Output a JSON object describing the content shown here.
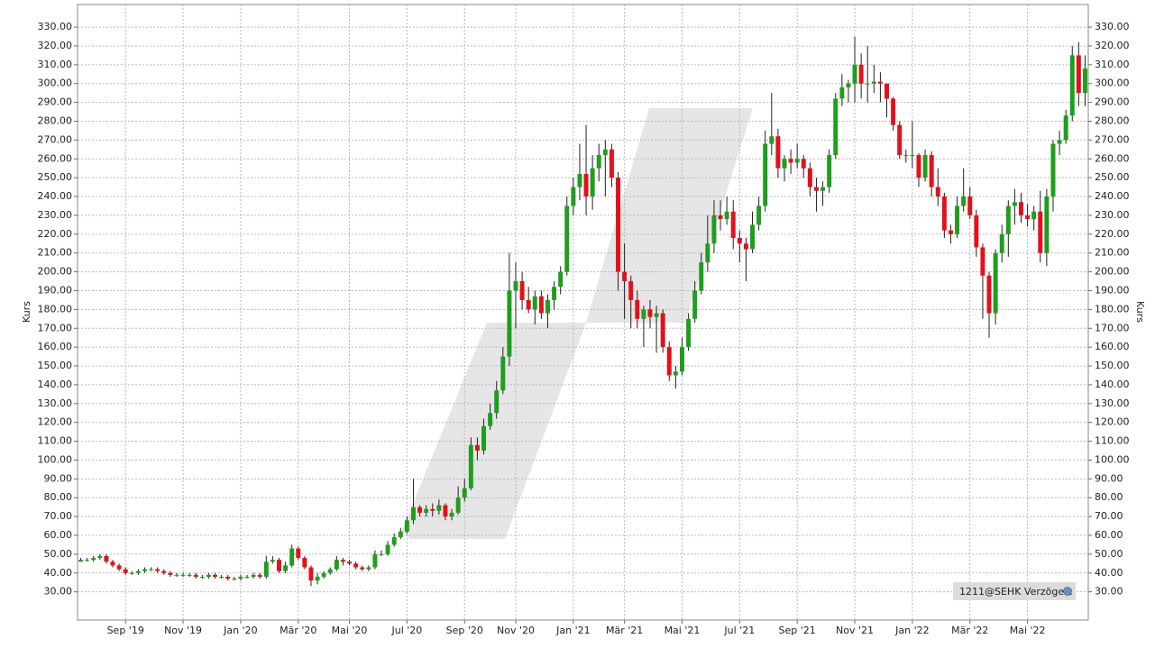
{
  "chart_data": {
    "type": "candlestick",
    "y_label": "Kurs",
    "source_label": "1211@SEHK Verzögert",
    "up_color": "#1e9e1e",
    "down_color": "#e3101c",
    "grid": true,
    "ylim": [
      15,
      342
    ],
    "yticks": [
      {
        "value": 30,
        "label": "30.00"
      },
      {
        "value": 40,
        "label": "40.00"
      },
      {
        "value": 50,
        "label": "50.00"
      },
      {
        "value": 60,
        "label": "60.00"
      },
      {
        "value": 70,
        "label": "70.00"
      },
      {
        "value": 80,
        "label": "80.00"
      },
      {
        "value": 90,
        "label": "90.00"
      },
      {
        "value": 100,
        "label": "100.00"
      },
      {
        "value": 110,
        "label": "110.00"
      },
      {
        "value": 120,
        "label": "120.00"
      },
      {
        "value": 130,
        "label": "130.00"
      },
      {
        "value": 140,
        "label": "140.00"
      },
      {
        "value": 150,
        "label": "150.00"
      },
      {
        "value": 160,
        "label": "160.00"
      },
      {
        "value": 170,
        "label": "170.00"
      },
      {
        "value": 180,
        "label": "180.00"
      },
      {
        "value": 190,
        "label": "190.00"
      },
      {
        "value": 200,
        "label": "200.00"
      },
      {
        "value": 210,
        "label": "210.00"
      },
      {
        "value": 220,
        "label": "220.00"
      },
      {
        "value": 230,
        "label": "230.00"
      },
      {
        "value": 240,
        "label": "240.00"
      },
      {
        "value": 250,
        "label": "250.00"
      },
      {
        "value": 260,
        "label": "260.00"
      },
      {
        "value": 270,
        "label": "270.00"
      },
      {
        "value": 280,
        "label": "280.00"
      },
      {
        "value": 290,
        "label": "290.00"
      },
      {
        "value": 300,
        "label": "300.00"
      },
      {
        "value": 310,
        "label": "310.00"
      },
      {
        "value": 320,
        "label": "320.00"
      },
      {
        "value": 330,
        "label": "330.00"
      }
    ],
    "categories": [
      null,
      null,
      null,
      null,
      null,
      null,
      null,
      "Sep '19",
      null,
      null,
      null,
      null,
      null,
      null,
      null,
      null,
      "Nov '19",
      null,
      null,
      null,
      null,
      null,
      null,
      null,
      null,
      "Jan '20",
      null,
      null,
      null,
      null,
      null,
      null,
      null,
      null,
      "Mär '20",
      null,
      null,
      null,
      null,
      null,
      null,
      null,
      "Mai '20",
      null,
      null,
      null,
      null,
      null,
      null,
      null,
      null,
      "Jul '20",
      null,
      null,
      null,
      null,
      null,
      null,
      null,
      null,
      "Sep '20",
      null,
      null,
      null,
      null,
      null,
      null,
      null,
      "Nov '20",
      null,
      null,
      null,
      null,
      null,
      null,
      null,
      null,
      "Jan '21",
      null,
      null,
      null,
      null,
      null,
      null,
      null,
      "Mär '21",
      null,
      null,
      null,
      null,
      null,
      null,
      null,
      null,
      "Mai '21",
      null,
      null,
      null,
      null,
      null,
      null,
      null,
      null,
      "Jul '21",
      null,
      null,
      null,
      null,
      null,
      null,
      null,
      null,
      "Sep '21",
      null,
      null,
      null,
      null,
      null,
      null,
      null,
      null,
      "Nov '21",
      null,
      null,
      null,
      null,
      null,
      null,
      null,
      null,
      "Jan '22",
      null,
      null,
      null,
      null,
      null,
      null,
      null,
      null,
      "Mär '22",
      null,
      null,
      null,
      null,
      null,
      null,
      null,
      null,
      "Mai '22",
      null,
      null,
      null,
      null,
      null,
      null,
      null,
      null,
      null
    ],
    "open": [
      46,
      47,
      47,
      48,
      49,
      46,
      44,
      42,
      40,
      40,
      41,
      42,
      42,
      41,
      40,
      39,
      39,
      39,
      39,
      38,
      38,
      39,
      38,
      38,
      37,
      37,
      38,
      38,
      39,
      38,
      46,
      47,
      41,
      44,
      53,
      48,
      43,
      36,
      38,
      40,
      42,
      47,
      46,
      45,
      43,
      42,
      43,
      50,
      50,
      55,
      59,
      62,
      68,
      75,
      72,
      74,
      73,
      76,
      70,
      72,
      80,
      85,
      108,
      105,
      118,
      125,
      137,
      155,
      190,
      195,
      185,
      180,
      187,
      178,
      185,
      192,
      200,
      235,
      245,
      252,
      240,
      255,
      262,
      265,
      250,
      200,
      195,
      185,
      175,
      180,
      176,
      178,
      160,
      145,
      147,
      160,
      175,
      190,
      205,
      215,
      230,
      228,
      232,
      218,
      215,
      212,
      225,
      235,
      268,
      272,
      255,
      260,
      258,
      260,
      255,
      245,
      243,
      245,
      262,
      292,
      298,
      300,
      310,
      300,
      300,
      301,
      300,
      292,
      278,
      262,
      262,
      262,
      250,
      262,
      245,
      240,
      222,
      220,
      235,
      240,
      230,
      213,
      198,
      178,
      210,
      220,
      235,
      237,
      230,
      228,
      232,
      210,
      240,
      268,
      270,
      283,
      315,
      295
    ],
    "high": [
      48,
      48,
      49,
      50,
      50,
      47,
      45,
      43,
      41,
      42,
      43,
      43,
      43,
      42,
      41,
      40,
      40,
      40,
      40,
      39,
      40,
      40,
      39,
      39,
      38,
      39,
      39,
      40,
      40,
      49,
      49,
      48,
      46,
      55,
      54,
      49,
      44,
      40,
      41,
      43,
      49,
      48,
      47,
      46,
      44,
      44,
      52,
      52,
      57,
      61,
      64,
      70,
      90,
      76,
      76,
      77,
      79,
      77,
      74,
      86,
      90,
      112,
      112,
      122,
      130,
      142,
      160,
      210,
      205,
      200,
      192,
      190,
      190,
      188,
      195,
      203,
      240,
      250,
      268,
      278,
      262,
      268,
      270,
      268,
      253,
      215,
      198,
      190,
      182,
      185,
      182,
      180,
      163,
      150,
      165,
      178,
      195,
      210,
      230,
      238,
      238,
      240,
      238,
      222,
      218,
      232,
      240,
      275,
      295,
      276,
      262,
      265,
      268,
      262,
      258,
      250,
      248,
      265,
      295,
      305,
      302,
      325,
      316,
      320,
      310,
      306,
      300,
      293,
      280,
      265,
      280,
      263,
      265,
      264,
      255,
      242,
      225,
      240,
      255,
      245,
      233,
      215,
      200,
      212,
      225,
      238,
      244,
      242,
      236,
      235,
      243,
      244,
      270,
      275,
      286,
      320,
      322,
      315
    ],
    "low": [
      46,
      46,
      46,
      47,
      45,
      43,
      41,
      39,
      39,
      39,
      40,
      41,
      40,
      39,
      38,
      38,
      38,
      38,
      37,
      37,
      37,
      37,
      37,
      36,
      36,
      36,
      37,
      37,
      37,
      37,
      45,
      40,
      40,
      43,
      47,
      42,
      33,
      34,
      37,
      39,
      41,
      44,
      44,
      42,
      41,
      41,
      42,
      49,
      49,
      54,
      58,
      61,
      66,
      70,
      70,
      70,
      71,
      68,
      68,
      71,
      78,
      84,
      100,
      103,
      116,
      122,
      135,
      150,
      170,
      180,
      178,
      172,
      175,
      170,
      180,
      188,
      198,
      230,
      238,
      230,
      233,
      248,
      240,
      245,
      190,
      175,
      170,
      170,
      160,
      170,
      157,
      157,
      142,
      138,
      145,
      158,
      173,
      188,
      200,
      210,
      222,
      225,
      212,
      205,
      195,
      210,
      222,
      232,
      262,
      250,
      248,
      252,
      255,
      250,
      240,
      232,
      235,
      242,
      260,
      288,
      290,
      290,
      292,
      290,
      295,
      290,
      282,
      275,
      260,
      258,
      255,
      245,
      248,
      240,
      235,
      218,
      215,
      218,
      232,
      228,
      208,
      175,
      165,
      172,
      205,
      208,
      225,
      226,
      224,
      222,
      205,
      203,
      232,
      262,
      268,
      280,
      288,
      288
    ],
    "close": [
      47,
      47,
      48,
      49,
      46,
      44,
      42,
      40,
      40,
      41,
      42,
      42,
      41,
      40,
      39,
      39,
      39,
      39,
      38,
      38,
      39,
      38,
      38,
      37,
      37,
      38,
      38,
      39,
      38,
      46,
      47,
      41,
      44,
      53,
      48,
      43,
      36,
      38,
      40,
      42,
      47,
      46,
      45,
      43,
      42,
      43,
      50,
      50,
      55,
      59,
      62,
      68,
      75,
      72,
      74,
      73,
      76,
      70,
      72,
      80,
      85,
      108,
      105,
      118,
      125,
      137,
      155,
      190,
      195,
      185,
      180,
      187,
      178,
      185,
      192,
      200,
      235,
      245,
      252,
      240,
      255,
      262,
      265,
      250,
      200,
      195,
      185,
      175,
      180,
      176,
      178,
      160,
      145,
      147,
      160,
      175,
      190,
      205,
      215,
      230,
      228,
      232,
      218,
      215,
      212,
      225,
      235,
      268,
      272,
      255,
      260,
      258,
      260,
      255,
      245,
      243,
      245,
      262,
      292,
      298,
      300,
      310,
      300,
      300,
      301,
      300,
      292,
      278,
      262,
      262,
      262,
      250,
      262,
      245,
      240,
      222,
      220,
      235,
      240,
      230,
      213,
      198,
      178,
      210,
      220,
      235,
      237,
      230,
      228,
      232,
      210,
      240,
      268,
      270,
      283,
      315,
      295,
      308
    ]
  }
}
